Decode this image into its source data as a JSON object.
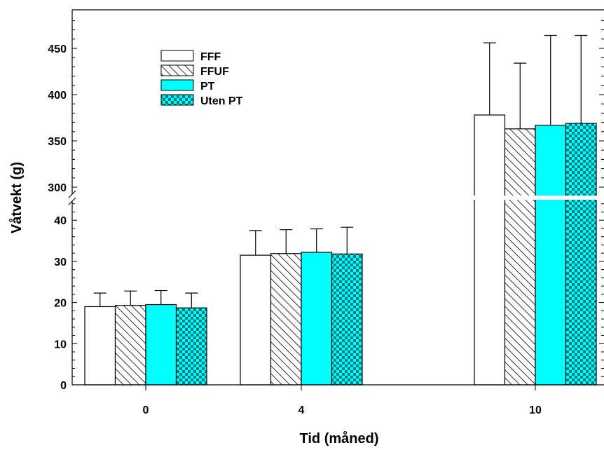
{
  "chart_data": {
    "type": "bar",
    "xlabel": "Tid (måned)",
    "ylabel": "Våtvekt (g)",
    "categories": [
      "0",
      "4",
      "10"
    ],
    "y_axis_break": {
      "lower_range": [
        0,
        45
      ],
      "upper_range": [
        287,
        480
      ]
    },
    "lower_ticks": [
      "0",
      "10",
      "20",
      "30",
      "40"
    ],
    "upper_ticks": [
      "300",
      "350",
      "400",
      "450"
    ],
    "series": [
      {
        "name": "FFF",
        "fill": "white",
        "values": [
          19,
          31.5,
          378
        ],
        "errors": [
          3.3,
          6.0,
          78
        ]
      },
      {
        "name": "FFUF",
        "fill": "hatch",
        "values": [
          19.3,
          31.9,
          363
        ],
        "errors": [
          3.5,
          5.8,
          71
        ]
      },
      {
        "name": "PT",
        "fill": "cyan",
        "values": [
          19.5,
          32.2,
          367
        ],
        "errors": [
          3.4,
          5.7,
          97
        ]
      },
      {
        "name": "Uten PT",
        "fill": "checker",
        "values": [
          18.7,
          31.8,
          369
        ],
        "errors": [
          3.6,
          6.5,
          95
        ]
      }
    ],
    "legend_position": "top-left",
    "grid": false,
    "colors": {
      "cyan": "#00ffff",
      "checker": "#008080",
      "outline": "#000000"
    }
  }
}
